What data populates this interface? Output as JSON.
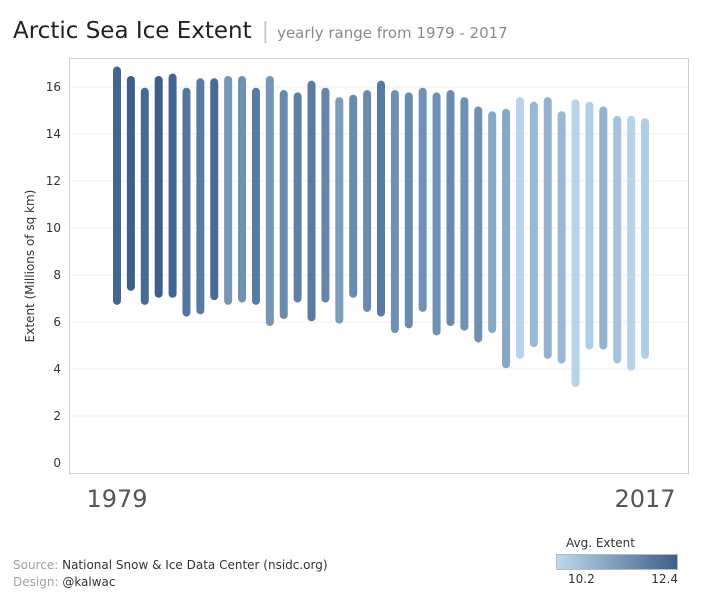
{
  "header": {
    "title": "Arctic Sea Ice Extent",
    "separator": "|",
    "subtitle": "yearly range from 1979 - 2017"
  },
  "footer": {
    "source_label": "Source:",
    "source_text": "National Snow & Ice Data Center (nsidc.org)",
    "design_label": "Design:",
    "design_text": "@kalwac"
  },
  "legend": {
    "title": "Avg. Extent",
    "min_label": "10.2",
    "max_label": "12.4",
    "color_low": "#bcd9ee",
    "color_high": "#3d5f8a"
  },
  "chart_data": {
    "type": "range-bar",
    "title": "Arctic Sea Ice Extent",
    "subtitle": "yearly range from 1979 - 2017",
    "ylabel": "Extent (Millions of sq km)",
    "ylim": [
      0,
      17.5
    ],
    "y_ticks": [
      0,
      2,
      4,
      6,
      8,
      10,
      12,
      14,
      16
    ],
    "x_start_label": "1979",
    "x_end_label": "2017",
    "gridlines": true,
    "color_scale": {
      "label": "Avg. Extent",
      "min": 10.2,
      "max": 12.4
    },
    "years": [
      1979,
      1980,
      1981,
      1982,
      1983,
      1984,
      1985,
      1986,
      1987,
      1988,
      1989,
      1990,
      1991,
      1992,
      1993,
      1994,
      1995,
      1996,
      1997,
      1998,
      1999,
      2000,
      2001,
      2002,
      2003,
      2004,
      2005,
      2006,
      2007,
      2008,
      2009,
      2010,
      2011,
      2012,
      2013,
      2014,
      2015,
      2016,
      2017
    ],
    "min_extent": [
      6.9,
      7.5,
      6.9,
      7.2,
      7.2,
      6.4,
      6.5,
      7.1,
      6.9,
      7.0,
      6.9,
      6.0,
      6.3,
      7.0,
      6.2,
      7.0,
      6.1,
      7.2,
      6.6,
      6.4,
      5.7,
      5.9,
      6.6,
      5.6,
      6.0,
      5.8,
      5.3,
      5.7,
      4.2,
      4.6,
      5.1,
      4.6,
      4.4,
      3.4,
      5.0,
      5.0,
      4.4,
      4.1,
      4.6
    ],
    "max_extent": [
      16.7,
      16.3,
      15.8,
      16.3,
      16.4,
      15.8,
      16.2,
      16.2,
      16.3,
      16.3,
      15.8,
      16.3,
      15.7,
      15.6,
      16.1,
      15.8,
      15.4,
      15.5,
      15.7,
      16.1,
      15.7,
      15.6,
      15.8,
      15.6,
      15.7,
      15.4,
      15.0,
      14.8,
      14.9,
      15.4,
      15.2,
      15.4,
      14.8,
      15.3,
      15.2,
      15.0,
      14.6,
      14.6,
      14.5
    ],
    "avg_extent": [
      12.3,
      12.4,
      12.2,
      12.4,
      12.3,
      12.0,
      11.9,
      12.2,
      11.4,
      11.5,
      11.9,
      11.4,
      11.6,
      11.8,
      11.9,
      11.7,
      11.3,
      11.6,
      11.6,
      11.9,
      11.5,
      11.6,
      11.5,
      11.5,
      11.6,
      11.5,
      11.5,
      11.1,
      11.1,
      10.3,
      10.8,
      10.9,
      10.8,
      10.3,
      10.4,
      10.9,
      10.6,
      10.3,
      10.4
    ]
  }
}
